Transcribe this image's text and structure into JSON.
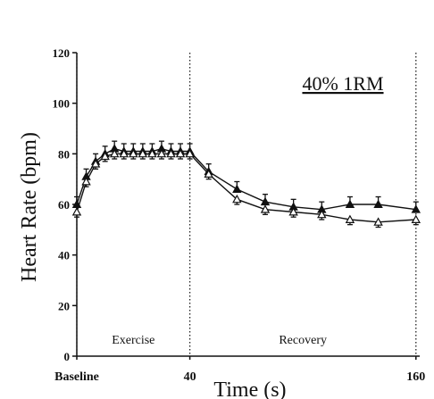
{
  "chart_data": {
    "type": "line",
    "title": "40% 1RM",
    "xlabel": "Time (s)",
    "ylabel": "Heart Rate (bpm)",
    "xlim": [
      -20,
      162
    ],
    "ylim": [
      0,
      120
    ],
    "y_ticks": [
      "0",
      "20",
      "40",
      "60",
      "80",
      "100",
      "120"
    ],
    "x_ticks": [
      {
        "x": -20,
        "label": "Baseline"
      },
      {
        "x": 40,
        "label": "40"
      },
      {
        "x": 160,
        "label": "160"
      }
    ],
    "vlines": [
      -20,
      40,
      160
    ],
    "phase_labels": [
      {
        "x": 10,
        "label": "Exercise"
      },
      {
        "x": 100,
        "label": "Recovery"
      }
    ],
    "grid": false,
    "legend": "none",
    "series": [
      {
        "marker": "filled-triangle",
        "x": [
          -20,
          -15,
          -10,
          -5,
          0,
          5,
          10,
          15,
          20,
          25,
          30,
          35,
          40,
          50,
          65,
          80,
          95,
          110,
          125,
          140,
          160
        ],
        "y": [
          60,
          71,
          77,
          80,
          82,
          81,
          81,
          81,
          81,
          82,
          81,
          81,
          81,
          73,
          66,
          61,
          59,
          58,
          60,
          60,
          58
        ],
        "err": [
          3,
          3,
          3,
          3,
          3,
          3,
          3,
          3,
          3,
          3,
          3,
          3,
          3,
          3,
          3,
          3,
          3,
          3,
          3,
          3,
          3
        ]
      },
      {
        "marker": "open-triangle",
        "x": [
          -20,
          -15,
          -10,
          -5,
          0,
          5,
          10,
          15,
          20,
          25,
          30,
          35,
          40,
          50,
          65,
          80,
          95,
          110,
          125,
          140,
          160
        ],
        "y": [
          57,
          69,
          76,
          79,
          80,
          80,
          80,
          80,
          80,
          80,
          80,
          80,
          80,
          72,
          62,
          58,
          57,
          56,
          54,
          53,
          54
        ],
        "err": [
          2,
          2,
          2,
          2,
          2,
          2,
          2,
          2,
          2,
          2,
          2,
          2,
          2,
          2,
          2,
          2,
          2,
          2,
          2,
          2,
          2
        ]
      }
    ]
  }
}
